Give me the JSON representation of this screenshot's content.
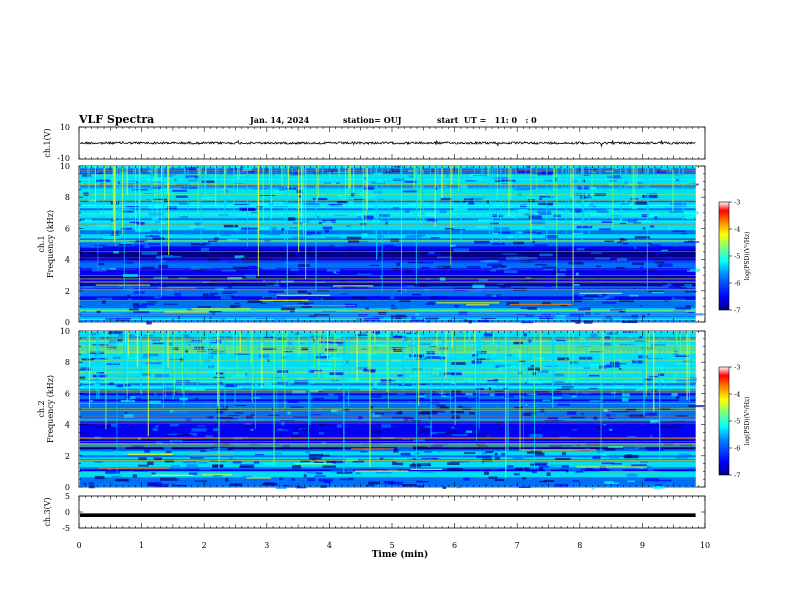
{
  "header": {
    "title": "VLF Spectra",
    "date": "Jan. 14, 2024",
    "station": "station= OUJ",
    "start": "start  UT =   11: 0   : 0"
  },
  "chart_data": [
    {
      "type": "line",
      "panel": "ch1-waveform",
      "ylabel": "ch.1(V)",
      "ylim": [
        -10,
        10
      ],
      "y_ticks": [
        "10",
        "-10"
      ],
      "xlim": [
        0,
        10
      ],
      "trace_level": 0,
      "color": "#000000"
    },
    {
      "type": "heatmap",
      "panel": "ch1-spectrogram",
      "ylabel": "ch.1\nFrequency (kHz)",
      "ylim": [
        0,
        10
      ],
      "y_ticks": [
        "0",
        "2",
        "4",
        "6",
        "8",
        "10"
      ],
      "xlim": [
        0,
        10
      ],
      "colorbar": {
        "range": [
          -7,
          -3
        ],
        "ticks": [
          "-3",
          "-4",
          "-5",
          "-6",
          "-7"
        ],
        "label": "log(PSD)(V²/Hz)"
      }
    },
    {
      "type": "heatmap",
      "panel": "ch2-spectrogram",
      "ylabel": "ch.2\nFrequency (kHz)",
      "ylim": [
        0,
        10
      ],
      "y_ticks": [
        "0",
        "2",
        "4",
        "6",
        "8",
        "10"
      ],
      "xlim": [
        0,
        10
      ],
      "colorbar": {
        "range": [
          -7,
          -3
        ],
        "ticks": [
          "-3",
          "-4",
          "-5",
          "-6",
          "-7"
        ],
        "label": "log(PSD)(V²/Hz)"
      }
    },
    {
      "type": "line",
      "panel": "ch3-waveform",
      "ylabel": "ch.3(V)",
      "ylim": [
        -5,
        5
      ],
      "y_ticks": [
        "5",
        "0",
        "-5"
      ],
      "xlim": [
        0,
        10
      ],
      "trace_level": -1,
      "color": "#000000"
    }
  ],
  "x_axis": {
    "label": "Time (min)",
    "range": [
      0,
      10
    ],
    "ticks": [
      "0",
      "1",
      "2",
      "3",
      "4",
      "5",
      "6",
      "7",
      "8",
      "9",
      "10"
    ],
    "data_end": 9.85
  },
  "colors": {
    "colormap": [
      "#00007f",
      "#0000ff",
      "#007fff",
      "#00ffff",
      "#7fff7f",
      "#ffff00",
      "#ff7f00",
      "#ff0000",
      "#ffffff"
    ]
  }
}
